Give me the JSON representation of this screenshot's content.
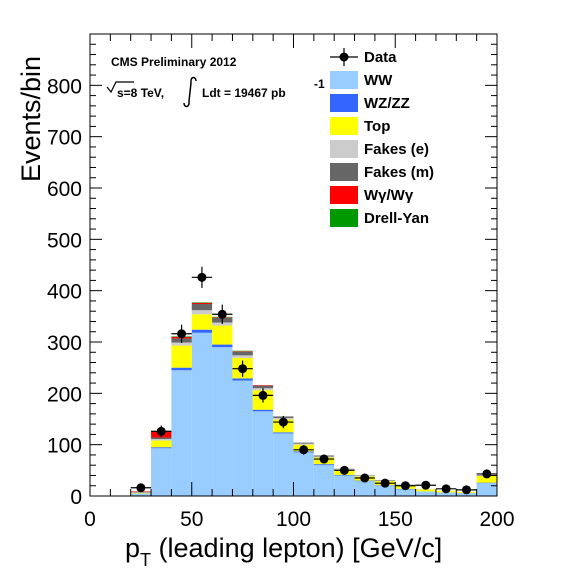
{
  "chart_data": {
    "type": "bar",
    "stacked": true,
    "xlabel_parts": [
      "p",
      "T",
      " (leading lepton) [GeV/c]"
    ],
    "ylabel": "Events/bin",
    "xlim": [
      0,
      200
    ],
    "ylim": [
      0,
      900
    ],
    "x_ticks": [
      0,
      50,
      100,
      150,
      200
    ],
    "y_ticks": [
      0,
      100,
      200,
      300,
      400,
      500,
      600,
      700,
      800
    ],
    "bin_edges": [
      0,
      10,
      20,
      30,
      40,
      50,
      60,
      70,
      80,
      90,
      100,
      110,
      120,
      130,
      140,
      150,
      160,
      170,
      180,
      190,
      200
    ],
    "annotations": {
      "line1": "CMS Preliminary 2012",
      "sqrt_s": "s=8 TeV,",
      "lumi": "Ldt = 19467 pb",
      "lumi_exp": "-1"
    },
    "legend_position": "top-right",
    "data": {
      "name": "Data",
      "x": [
        25,
        35,
        45,
        55,
        65,
        75,
        85,
        95,
        105,
        115,
        125,
        135,
        145,
        155,
        165,
        175,
        185,
        195
      ],
      "y": [
        16,
        126,
        316,
        426,
        354,
        248,
        196,
        144,
        90,
        72,
        50,
        35,
        25,
        20,
        21,
        14,
        12,
        43
      ]
    },
    "series": [
      {
        "name": "WW",
        "color": "#99ccff",
        "values": [
          0,
          0,
          5,
          93,
          245,
          318,
          290,
          225,
          165,
          122,
          85,
          60,
          40,
          29,
          20,
          13,
          9,
          7,
          6,
          25
        ]
      },
      {
        "name": "WZ/ZZ",
        "color": "#3366ff",
        "values": [
          0,
          0,
          0,
          2,
          5,
          6,
          5,
          4,
          3,
          2,
          2,
          2,
          1,
          1,
          1,
          1,
          0,
          0,
          0,
          1
        ]
      },
      {
        "name": "Top",
        "color": "#ffff00",
        "values": [
          0,
          0,
          1,
          13,
          43,
          30,
          37,
          40,
          38,
          25,
          13,
          13,
          10,
          8,
          8,
          6,
          4,
          3,
          2,
          13
        ]
      },
      {
        "name": "Fakes (e)",
        "color": "#cccccc",
        "values": [
          0,
          0,
          1,
          3,
          6,
          8,
          6,
          5,
          4,
          3,
          2,
          2,
          1,
          1,
          1,
          1,
          1,
          0,
          0,
          1
        ]
      },
      {
        "name": "Fakes (m)",
        "color": "#666666",
        "values": [
          0,
          0,
          1,
          3,
          8,
          12,
          9,
          7,
          5,
          3,
          2,
          2,
          1,
          1,
          1,
          1,
          0,
          0,
          0,
          1
        ]
      },
      {
        "name": "Wγ/Wγ",
        "color": "#ff0000",
        "values": [
          0,
          0,
          1,
          12,
          3,
          2,
          1,
          1,
          1,
          0,
          0,
          0,
          0,
          0,
          0,
          0,
          0,
          0,
          0,
          0
        ]
      },
      {
        "name": "Drell-Yan",
        "color": "#009900",
        "values": [
          0,
          0,
          0,
          1,
          1,
          1,
          1,
          1,
          0,
          0,
          0,
          0,
          0,
          0,
          0,
          0,
          0,
          0,
          0,
          0
        ]
      }
    ]
  }
}
